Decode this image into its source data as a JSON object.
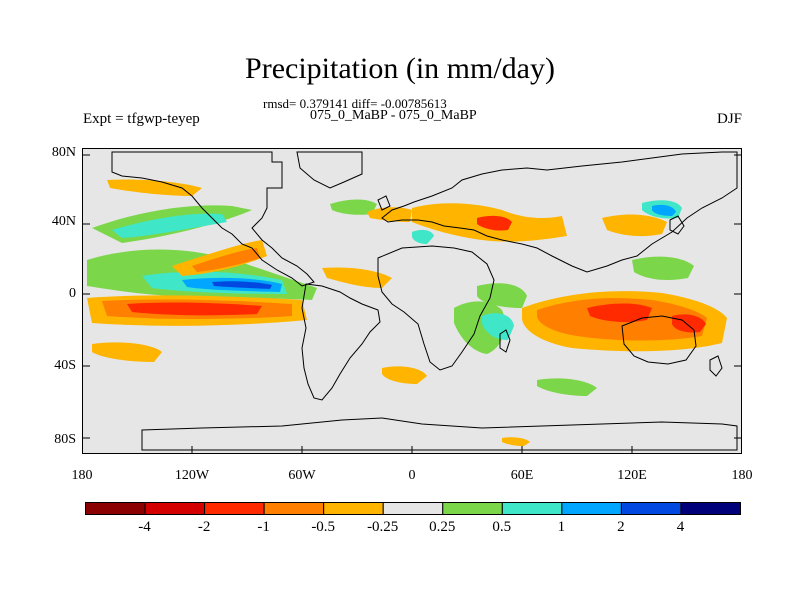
{
  "figure": {
    "title": "Precipitation (in mm/day)",
    "stats_line": "rmsd= 0.379141 diff= -0.00785613",
    "experiment_pair": "075_0_MaBP - 075_0_MaBP",
    "experiment_label": "Expt = tfgwp-teyep",
    "season": "DJF"
  },
  "axes": {
    "lat_labels": [
      "80N",
      "40N",
      "0",
      "40S",
      "80S"
    ],
    "lon_labels": [
      "180",
      "120W",
      "60W",
      "0",
      "60E",
      "120E",
      "180"
    ]
  },
  "colorbar": {
    "labels": [
      "-4",
      "-2",
      "-1",
      "-0.5",
      "-0.25",
      "0.25",
      "0.5",
      "1",
      "2",
      "4"
    ],
    "colors": [
      "#8b0000",
      "#d40000",
      "#ff2a00",
      "#ff7f00",
      "#ffb400",
      "#e6e6e6",
      "#7cd64a",
      "#3fe6c8",
      "#00a6ff",
      "#0048e0",
      "#00007a"
    ]
  },
  "map_colors": {
    "background": "#e6e6e6",
    "orange": "#ffb400",
    "dark_orange": "#ff7f00",
    "red": "#ff2a00",
    "green": "#7cd64a",
    "cyan": "#3fe6c8",
    "light_blue": "#00a6ff",
    "blue": "#0048e0"
  }
}
